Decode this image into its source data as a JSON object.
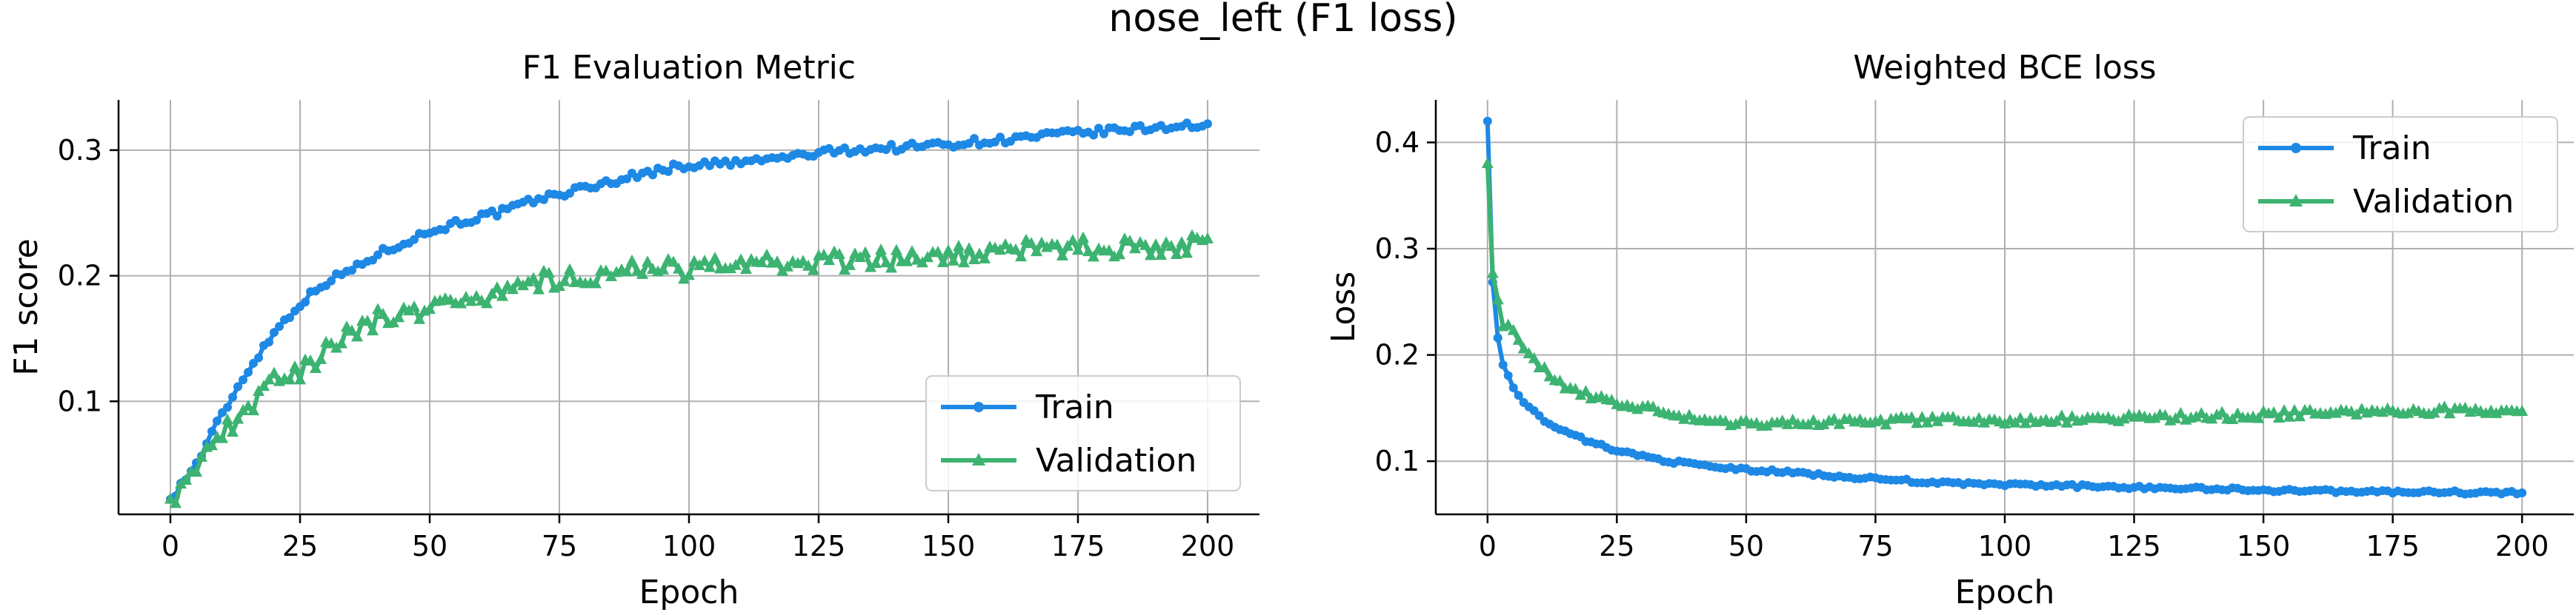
{
  "figure": {
    "suptitle": "nose_left (F1 loss)"
  },
  "chart_data": [
    {
      "type": "line",
      "title": "F1 Evaluation Metric",
      "xlabel": "Epoch",
      "ylabel": "F1 score",
      "xlim": [
        -10,
        210
      ],
      "ylim": [
        0.01,
        0.34
      ],
      "xticks": [
        0,
        25,
        50,
        75,
        100,
        125,
        150,
        175,
        200
      ],
      "yticks": [
        0.1,
        0.2,
        0.3
      ],
      "ytick_labels": [
        "0.1",
        "0.2",
        "0.3"
      ],
      "grid": true,
      "legend_position": "lower-right",
      "series": [
        {
          "name": "Train",
          "color": "#1e88e5",
          "marker": "circle",
          "anchors": [
            [
              0,
              0.022
            ],
            [
              5,
              0.05
            ],
            [
              10,
              0.09
            ],
            [
              15,
              0.125
            ],
            [
              20,
              0.155
            ],
            [
              25,
              0.178
            ],
            [
              30,
              0.195
            ],
            [
              35,
              0.205
            ],
            [
              40,
              0.217
            ],
            [
              45,
              0.227
            ],
            [
              50,
              0.235
            ],
            [
              55,
              0.242
            ],
            [
              60,
              0.247
            ],
            [
              65,
              0.252
            ],
            [
              70,
              0.26
            ],
            [
              75,
              0.265
            ],
            [
              80,
              0.27
            ],
            [
              85,
              0.275
            ],
            [
              90,
              0.28
            ],
            [
              95,
              0.285
            ],
            [
              100,
              0.288
            ],
            [
              110,
              0.29
            ],
            [
              120,
              0.295
            ],
            [
              130,
              0.3
            ],
            [
              140,
              0.302
            ],
            [
              150,
              0.305
            ],
            [
              160,
              0.308
            ],
            [
              170,
              0.312
            ],
            [
              180,
              0.315
            ],
            [
              190,
              0.318
            ],
            [
              195,
              0.32
            ],
            [
              200,
              0.318
            ]
          ],
          "noise": 0.003
        },
        {
          "name": "Validation",
          "color": "#3cb371",
          "marker": "tri",
          "anchors": [
            [
              0,
              0.022
            ],
            [
              5,
              0.045
            ],
            [
              10,
              0.075
            ],
            [
              15,
              0.095
            ],
            [
              20,
              0.115
            ],
            [
              25,
              0.125
            ],
            [
              30,
              0.14
            ],
            [
              35,
              0.155
            ],
            [
              40,
              0.165
            ],
            [
              45,
              0.17
            ],
            [
              50,
              0.175
            ],
            [
              55,
              0.18
            ],
            [
              60,
              0.183
            ],
            [
              65,
              0.19
            ],
            [
              70,
              0.195
            ],
            [
              75,
              0.198
            ],
            [
              80,
              0.2
            ],
            [
              90,
              0.205
            ],
            [
              100,
              0.205
            ],
            [
              110,
              0.207
            ],
            [
              120,
              0.21
            ],
            [
              130,
              0.212
            ],
            [
              140,
              0.213
            ],
            [
              150,
              0.215
            ],
            [
              160,
              0.22
            ],
            [
              170,
              0.222
            ],
            [
              180,
              0.222
            ],
            [
              190,
              0.224
            ],
            [
              200,
              0.225
            ]
          ],
          "noise": 0.008
        }
      ]
    },
    {
      "type": "line",
      "title": "Weighted BCE loss",
      "xlabel": "Epoch",
      "ylabel": "Loss",
      "xlim": [
        -10,
        210
      ],
      "ylim": [
        0.05,
        0.44
      ],
      "xticks": [
        0,
        25,
        50,
        75,
        100,
        125,
        150,
        175,
        200
      ],
      "yticks": [
        0.1,
        0.2,
        0.3,
        0.4
      ],
      "ytick_labels": [
        "0.1",
        "0.2",
        "0.3",
        "0.4"
      ],
      "grid": true,
      "legend_position": "top-right",
      "series": [
        {
          "name": "Train",
          "color": "#1e88e5",
          "marker": "circle",
          "anchors": [
            [
              0,
              0.42
            ],
            [
              1,
              0.27
            ],
            [
              2,
              0.215
            ],
            [
              3,
              0.19
            ],
            [
              5,
              0.17
            ],
            [
              8,
              0.15
            ],
            [
              12,
              0.135
            ],
            [
              16,
              0.125
            ],
            [
              20,
              0.118
            ],
            [
              25,
              0.11
            ],
            [
              30,
              0.105
            ],
            [
              35,
              0.1
            ],
            [
              40,
              0.097
            ],
            [
              45,
              0.094
            ],
            [
              50,
              0.092
            ],
            [
              60,
              0.089
            ],
            [
              70,
              0.085
            ],
            [
              80,
              0.082
            ],
            [
              90,
              0.079
            ],
            [
              100,
              0.078
            ],
            [
              120,
              0.076
            ],
            [
              140,
              0.074
            ],
            [
              160,
              0.072
            ],
            [
              180,
              0.071
            ],
            [
              200,
              0.07
            ]
          ],
          "noise": 0.0015
        },
        {
          "name": "Validation",
          "color": "#3cb371",
          "marker": "tri",
          "anchors": [
            [
              0,
              0.38
            ],
            [
              1,
              0.28
            ],
            [
              2,
              0.25
            ],
            [
              3,
              0.23
            ],
            [
              5,
              0.22
            ],
            [
              8,
              0.2
            ],
            [
              10,
              0.19
            ],
            [
              15,
              0.17
            ],
            [
              20,
              0.162
            ],
            [
              25,
              0.155
            ],
            [
              30,
              0.15
            ],
            [
              35,
              0.145
            ],
            [
              40,
              0.14
            ],
            [
              45,
              0.135
            ],
            [
              50,
              0.135
            ],
            [
              60,
              0.137
            ],
            [
              70,
              0.136
            ],
            [
              80,
              0.138
            ],
            [
              90,
              0.138
            ],
            [
              100,
              0.138
            ],
            [
              120,
              0.14
            ],
            [
              140,
              0.142
            ],
            [
              160,
              0.145
            ],
            [
              180,
              0.147
            ],
            [
              190,
              0.148
            ],
            [
              200,
              0.148
            ]
          ],
          "noise": 0.0035
        }
      ]
    }
  ]
}
